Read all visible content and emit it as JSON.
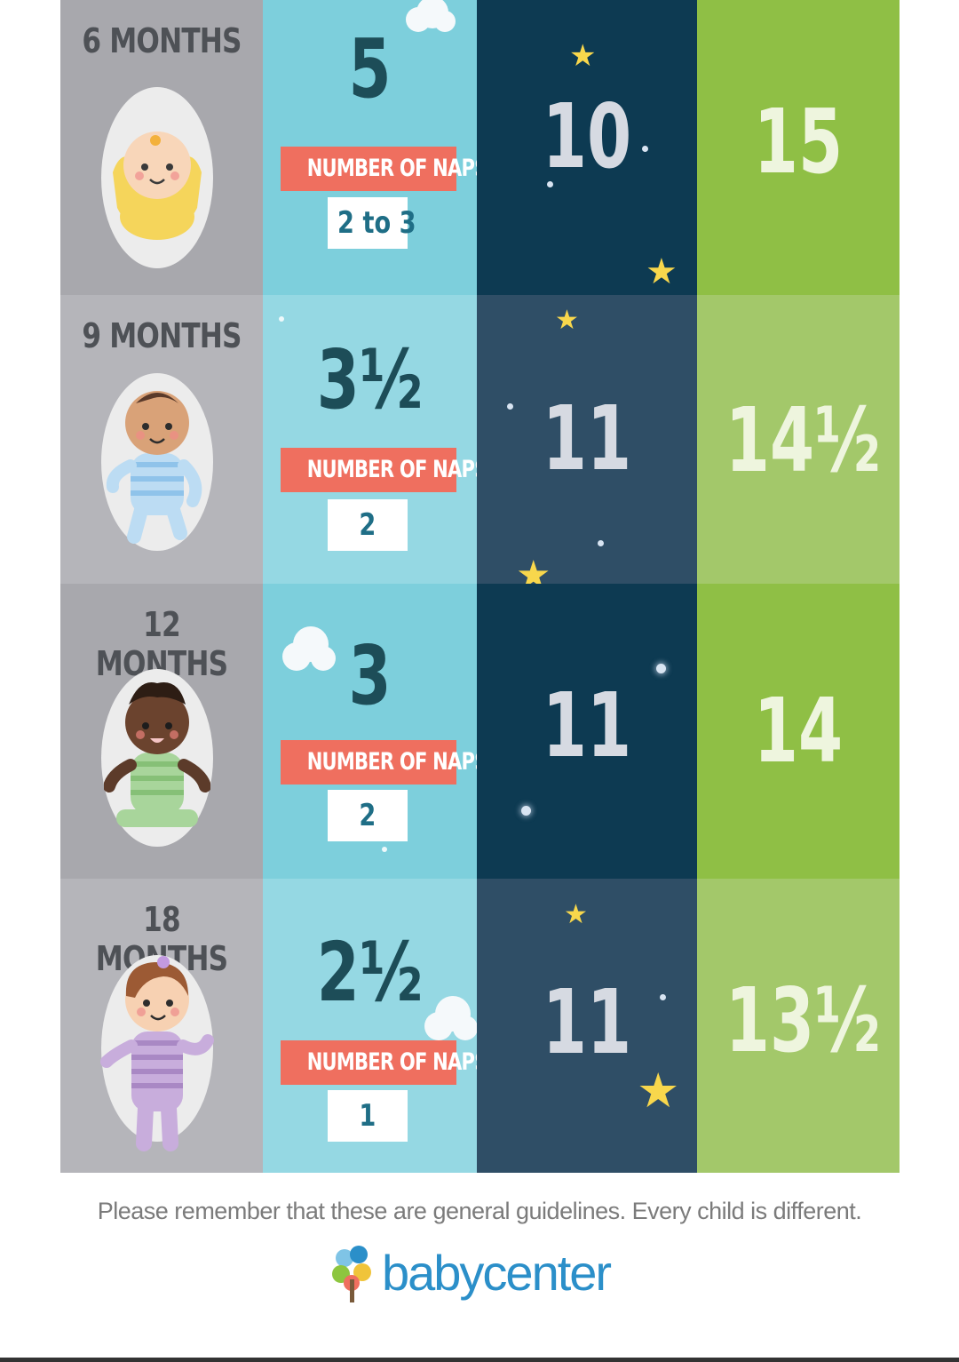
{
  "rows": [
    {
      "age": "6 MONTHS",
      "nap_hours": "5",
      "nap_label": "NUMBER OF NAPS:",
      "nap_count": "2 to 3",
      "night": "10",
      "total": "15",
      "baby": "yellow-bunting-baby"
    },
    {
      "age": "9 MONTHS",
      "nap_hours": "3½",
      "nap_label": "NUMBER OF NAPS:",
      "nap_count": "2",
      "night": "11",
      "total": "14½",
      "baby": "blue-striped-baby"
    },
    {
      "age": "12 MONTHS",
      "nap_hours": "3",
      "nap_label": "NUMBER OF NAPS:",
      "nap_count": "2",
      "night": "11",
      "total": "14",
      "baby": "green-striped-baby"
    },
    {
      "age": "18 MONTHS",
      "nap_hours": "2½",
      "nap_label": "NUMBER OF NAPS:",
      "nap_count": "1",
      "night": "11",
      "total": "13½",
      "baby": "purple-striped-baby"
    }
  ],
  "footer": {
    "note": "Please remember that these are general guidelines. Every child is different.",
    "logo_text": "babycenter"
  },
  "colors": {
    "age_column": "#a8a8ad",
    "nap_column": "#7dcfdc",
    "night_column": "#0d3a52",
    "total_column": "#8fbf45",
    "nap_label_bg": "#ef6f5f",
    "star": "#f8d74c",
    "logo": "#2b8fc9"
  }
}
